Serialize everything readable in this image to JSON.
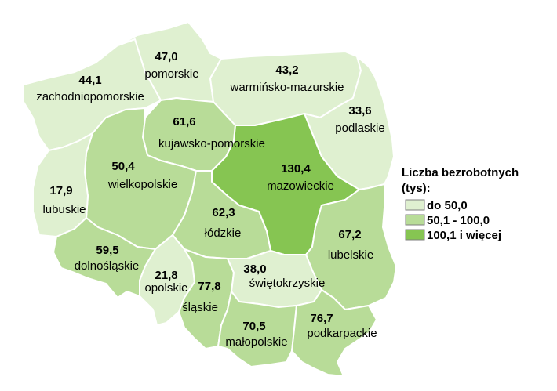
{
  "legend": {
    "title_line1": "Liczba bezrobotnych",
    "title_line2": "(tys):",
    "classes": [
      {
        "label": "do 50,0",
        "color": "#dff0d0"
      },
      {
        "label": "50,1 - 100,0",
        "color": "#b8dc98"
      },
      {
        "label": "100,1 i więcej",
        "color": "#86c552"
      }
    ]
  },
  "regions": {
    "zachodniopomorskie": {
      "name": "zachodniopomorskie",
      "value": "44,1",
      "class": 0
    },
    "pomorskie": {
      "name": "pomorskie",
      "value": "47,0",
      "class": 0
    },
    "warminsko_mazurskie": {
      "name": "warmińsko-mazurskie",
      "value": "43,2",
      "class": 0
    },
    "podlaskie": {
      "name": "podlaskie",
      "value": "33,6",
      "class": 0
    },
    "kujawsko_pomorskie": {
      "name": "kujawsko-pomorskie",
      "value": "61,6",
      "class": 1
    },
    "wielkopolskie": {
      "name": "wielkopolskie",
      "value": "50,4",
      "class": 1
    },
    "lubuskie": {
      "name": "lubuskie",
      "value": "17,9",
      "class": 0
    },
    "mazowieckie": {
      "name": "mazowieckie",
      "value": "130,4",
      "class": 2
    },
    "lodzkie": {
      "name": "łódzkie",
      "value": "62,3",
      "class": 1
    },
    "lubelskie": {
      "name": "lubelskie",
      "value": "67,2",
      "class": 1
    },
    "dolnoslaskie": {
      "name": "dolnośląskie",
      "value": "59,5",
      "class": 1
    },
    "opolskie": {
      "name": "opolskie",
      "value": "21,8",
      "class": 0
    },
    "slaskie": {
      "name": "śląskie",
      "value": "77,8",
      "class": 1
    },
    "swietokrzyskie": {
      "name": "świętokrzyskie",
      "value": "38,0",
      "class": 0
    },
    "malopolskie": {
      "name": "małopolskie",
      "value": "70,5",
      "class": 1
    },
    "podkarpackie": {
      "name": "podkarpackie",
      "value": "76,7",
      "class": 1
    }
  }
}
